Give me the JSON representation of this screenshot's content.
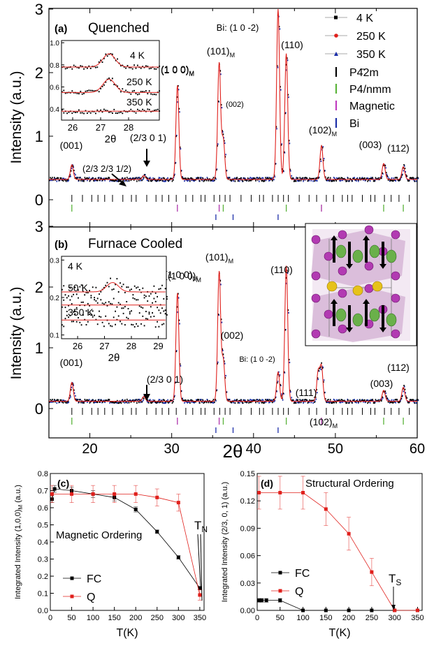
{
  "chart_data": [
    {
      "id": "a",
      "type": "line",
      "panel_label": "(a)",
      "title": "Quenched",
      "ylabel": "Intensity (a.u.)",
      "xlabel": "",
      "xlim": [
        15,
        60
      ],
      "ylim": [
        -0.3,
        3
      ],
      "y_ticks": [
        "0",
        "1",
        "2",
        "3"
      ],
      "legend": [
        "4 K",
        "250 K",
        "350 K",
        "P4̄2m",
        "P4/nmm",
        "Magnetic",
        "Bi"
      ],
      "series_colors": {
        "4 K": "#000000",
        "250 K": "#e0201c",
        "350 K": "#1c2ea8",
        "fit": "#e0201c"
      },
      "peaks": [
        {
          "x": 17.8,
          "y": 0.55,
          "label": "(001)"
        },
        {
          "x": 26.6,
          "y": 0.38,
          "label": "(2/3 0 1)"
        },
        {
          "x": 30.7,
          "y": 1.8,
          "label": "(1 0 0)M"
        },
        {
          "x": 35.8,
          "y": 2.15,
          "label": "(101)M"
        },
        {
          "x": 36.3,
          "y": 0.95,
          "label": "(002)"
        },
        {
          "x": 43.0,
          "y": 3.0,
          "label": "Bi: (1 0 -2)"
        },
        {
          "x": 44.0,
          "y": 2.3,
          "label": "(110)"
        },
        {
          "x": 48.3,
          "y": 0.85,
          "label": "(102)M"
        },
        {
          "x": 55.9,
          "y": 0.57,
          "label": "(003)"
        },
        {
          "x": 58.3,
          "y": 0.52,
          "label": "(112)"
        }
      ],
      "annotations": [
        "(2/3 2/3 1/2)"
      ],
      "inset": {
        "xlabel": "2θ",
        "x_ticks": [
          "26",
          "27",
          "28"
        ],
        "y_ticks": [
          "0.4",
          "0.6",
          "0.8",
          "1.0"
        ],
        "curve_labels": [
          "4 K",
          "250 K",
          "350 K"
        ]
      }
    },
    {
      "id": "b",
      "type": "line",
      "panel_label": "(b)",
      "title": "Furnace Cooled",
      "ylabel": "Intensity (a.u.)",
      "xlabel": "2θ",
      "xlim": [
        15,
        60
      ],
      "ylim": [
        -0.3,
        3
      ],
      "x_ticks": [
        "20",
        "30",
        "40",
        "50",
        "60"
      ],
      "y_ticks": [
        "0",
        "1",
        "2",
        "3"
      ],
      "peaks": [
        {
          "x": 17.8,
          "y": 0.43,
          "label": "(001)"
        },
        {
          "x": 26.6,
          "y": 0.2,
          "label": "(2/3 0 1)"
        },
        {
          "x": 30.7,
          "y": 1.9,
          "label": "(1 0 0)M"
        },
        {
          "x": 35.8,
          "y": 2.25,
          "label": "(101)M"
        },
        {
          "x": 36.3,
          "y": 0.8,
          "label": "(002)"
        },
        {
          "x": 43.0,
          "y": 0.6,
          "label": "Bi: (1 0 -2)"
        },
        {
          "x": 44.0,
          "y": 2.35,
          "label": "(110)"
        },
        {
          "x": 47.9,
          "y": 0.6,
          "label": "(111)"
        },
        {
          "x": 48.3,
          "y": 0.68,
          "label": "(102)M"
        },
        {
          "x": 55.9,
          "y": 0.3,
          "label": "(003)"
        },
        {
          "x": 58.3,
          "y": 0.35,
          "label": "(112)"
        }
      ],
      "inset": {
        "xlabel": "2θ",
        "x_ticks": [
          "26",
          "27",
          "28",
          "29"
        ],
        "y_ticks": [
          "0.1",
          "0.2",
          "0.3"
        ],
        "curve_labels": [
          "4 K",
          "50 K",
          "350 K"
        ]
      }
    },
    {
      "id": "c",
      "type": "line",
      "panel_label": "(c)",
      "title": "Magnetic Ordering",
      "xlabel": "T(K)",
      "ylabel": "Integrated Intensity (1,0,0)M (a.u.)",
      "xlim": [
        0,
        360
      ],
      "ylim": [
        0,
        0.8
      ],
      "x_ticks": [
        "0",
        "50",
        "100",
        "150",
        "200",
        "250",
        "300",
        "350"
      ],
      "y_ticks": [
        "0.0",
        "0.1",
        "0.2",
        "0.3",
        "0.4",
        "0.5",
        "0.6",
        "0.7",
        "0.8"
      ],
      "annotation": "TN",
      "series": [
        {
          "name": "FC",
          "color": "#000000",
          "x": [
            4,
            10,
            50,
            100,
            150,
            200,
            250,
            300,
            350
          ],
          "y": [
            0.65,
            0.71,
            0.7,
            0.68,
            0.66,
            0.59,
            0.46,
            0.31,
            0.13
          ],
          "err": [
            0.02,
            0.02,
            0.02,
            0.02,
            0.02,
            0.015,
            0.01,
            0.01,
            0.01
          ]
        },
        {
          "name": "Q",
          "color": "#e0201c",
          "x": [
            4,
            50,
            100,
            150,
            200,
            250,
            300,
            350
          ],
          "y": [
            0.68,
            0.68,
            0.68,
            0.68,
            0.68,
            0.66,
            0.63,
            0.09
          ],
          "err": [
            0.05,
            0.05,
            0.05,
            0.05,
            0.05,
            0.05,
            0.05,
            0.03
          ]
        }
      ]
    },
    {
      "id": "d",
      "type": "line",
      "panel_label": "(d)",
      "title": "Structural Ordering",
      "xlabel": "T(K)",
      "ylabel": "Integrated Intensity (2/3, 0, 1) (a.u.)",
      "xlim": [
        0,
        360
      ],
      "ylim": [
        0,
        0.15
      ],
      "x_ticks": [
        "0",
        "50",
        "100",
        "150",
        "200",
        "250",
        "300",
        "350"
      ],
      "y_ticks": [
        "0.00",
        "0.03",
        "0.06",
        "0.09",
        "0.12",
        "0.15"
      ],
      "annotation": "TS",
      "series": [
        {
          "name": "FC",
          "color": "#000000",
          "x": [
            4,
            10,
            20,
            50,
            100,
            150,
            200,
            250,
            300,
            350
          ],
          "y": [
            0.011,
            0.011,
            0.011,
            0.011,
            0.0,
            0.0,
            0.0,
            0.0,
            0.0,
            0.0
          ],
          "err": [
            0.002,
            0.002,
            0.002,
            0.002,
            0,
            0,
            0,
            0,
            0,
            0
          ]
        },
        {
          "name": "Q",
          "color": "#e0201c",
          "x": [
            4,
            50,
            100,
            150,
            200,
            250,
            300,
            350
          ],
          "y": [
            0.129,
            0.129,
            0.129,
            0.111,
            0.084,
            0.042,
            0.0,
            0.0
          ],
          "err": [
            0.018,
            0.018,
            0.018,
            0.018,
            0.018,
            0.015,
            0.0,
            0.0
          ]
        }
      ]
    }
  ]
}
